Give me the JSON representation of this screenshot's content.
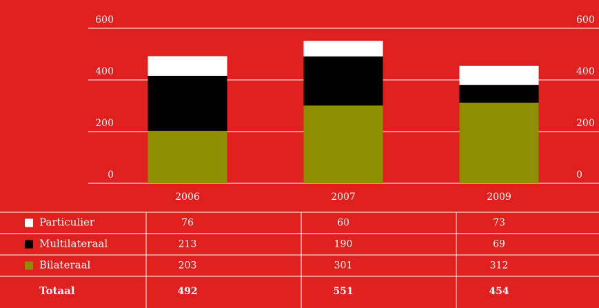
{
  "chart_data": {
    "type": "bar",
    "stacked": true,
    "categories": [
      "2006",
      "2007",
      "2009"
    ],
    "series": [
      {
        "name": "Particulier",
        "color": "#ffffff",
        "values": [
          76,
          60,
          73
        ]
      },
      {
        "name": "Multilateraal",
        "color": "#000000",
        "values": [
          213,
          190,
          69
        ]
      },
      {
        "name": "Bilateraal",
        "color": "#8c8f00",
        "values": [
          203,
          301,
          312
        ]
      }
    ],
    "totals": {
      "label": "Totaal",
      "values": [
        492,
        551,
        454
      ]
    },
    "ylim": [
      0,
      600
    ],
    "yticks": [
      0,
      200,
      400,
      600
    ],
    "grid": true
  }
}
